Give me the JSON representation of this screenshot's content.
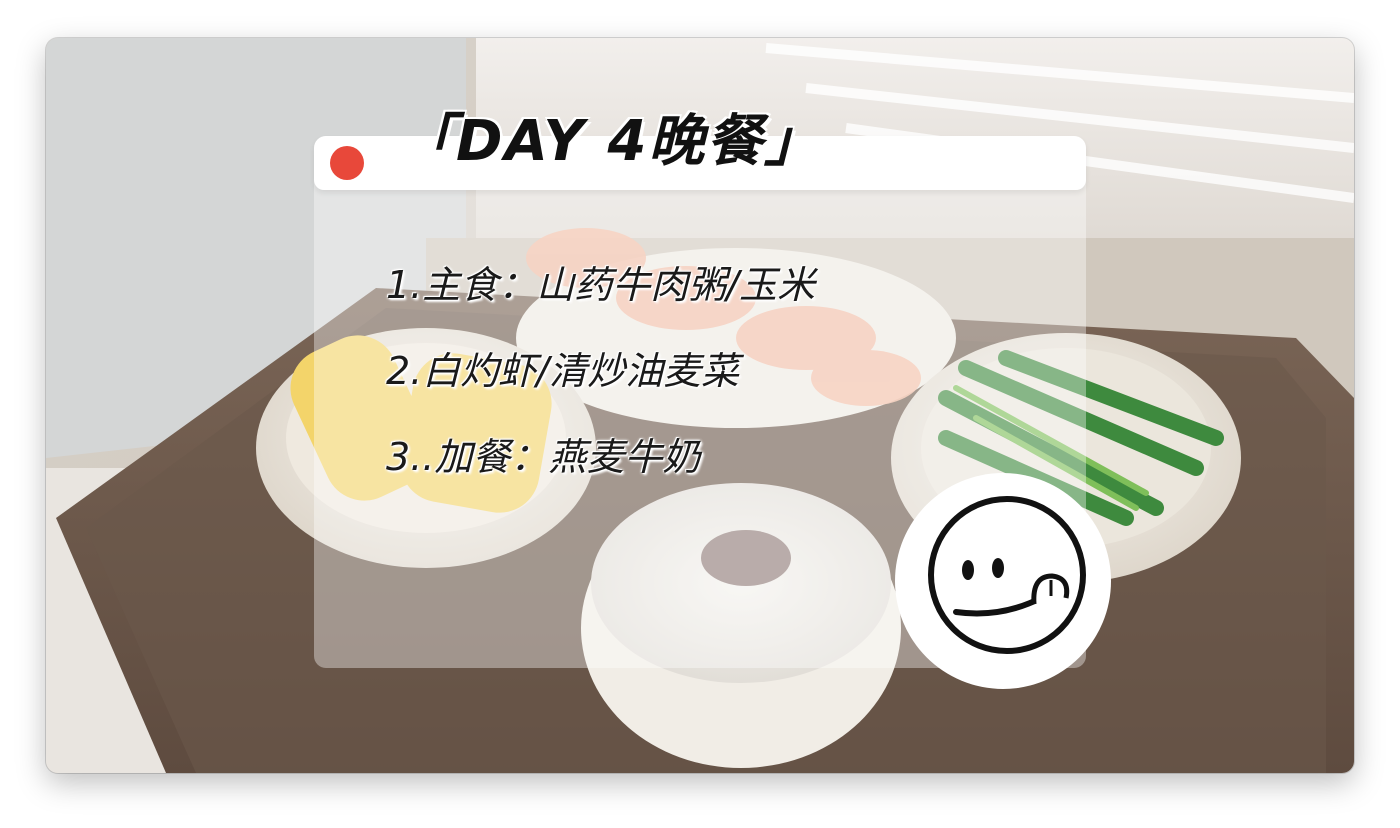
{
  "title": "「DAY 4晚餐」",
  "menu": {
    "items": [
      "1.主食：山药牛肉粥/玉米",
      "2.白灼虾/清炒油麦菜",
      "3..加餐：燕麦牛奶"
    ]
  },
  "colors": {
    "accent_dot": "#e8483a",
    "text": "#1a1a1a"
  },
  "icons": [
    "smiley-tongue-icon"
  ]
}
